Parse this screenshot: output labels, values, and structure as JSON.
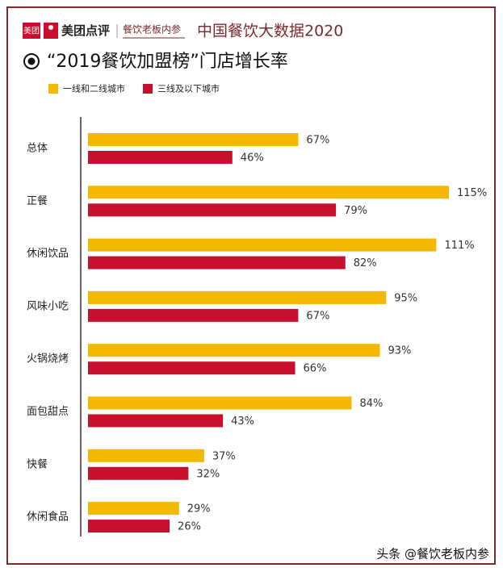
{
  "chart_data": {
    "type": "bar",
    "logo": "美团",
    "brand": "美团点评",
    "publisher": "餐饮老板内参",
    "report_title": "中国餐饮大数据2020",
    "title": "“2019餐饮加盟榜”门店增长率",
    "categories": [
      "总体",
      "正餐",
      "休闲饮品",
      "风味小吃",
      "火锅烧烤",
      "面包甜点",
      "快餐",
      "休闲食品"
    ],
    "series": [
      {
        "name": "一线和二线城市",
        "color": "#f5b800",
        "values": [
          67,
          115,
          111,
          95,
          93,
          84,
          37,
          29
        ],
        "value_labels": [
          "67%",
          "115%",
          "111%",
          "95%",
          "93%",
          "84%",
          "37%",
          "29%"
        ]
      },
      {
        "name": "三线及以下城市",
        "color": "#c8102e",
        "values": [
          46,
          79,
          82,
          67,
          66,
          43,
          32,
          26
        ],
        "value_labels": [
          "46%",
          "79%",
          "82%",
          "67%",
          "66%",
          "43%",
          "32%",
          "26%"
        ]
      }
    ],
    "watermark": "头条 @餐饮老板内参"
  }
}
